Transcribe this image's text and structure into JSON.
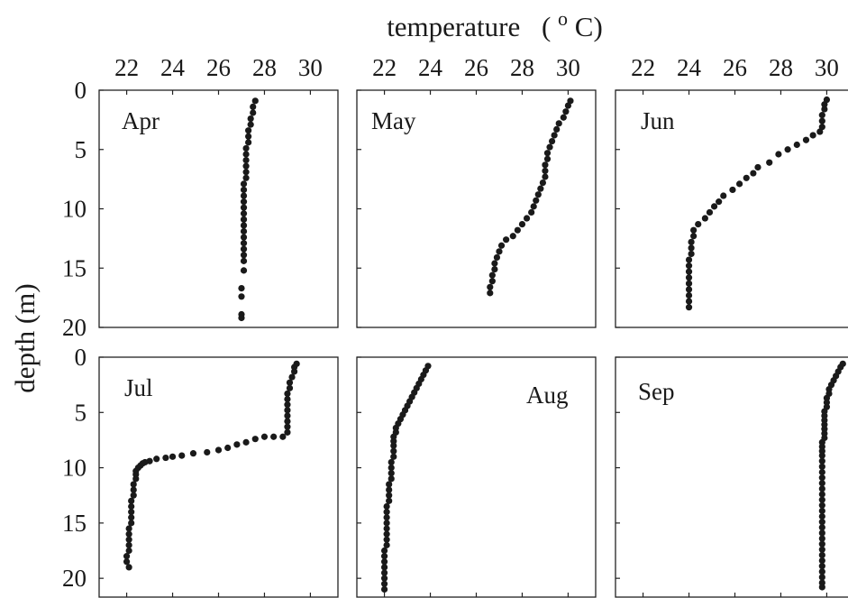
{
  "figure": {
    "xlabel": "temperature",
    "xlabel_unit_open": "(",
    "xlabel_unit_sup": "o",
    "xlabel_unit_close": "C)",
    "ylabel": "depth (m)"
  },
  "chart_data": {
    "type": "scatter",
    "xlabel": "temperature (oC)",
    "ylabel": "depth (m)",
    "xticks": [
      22,
      24,
      26,
      28,
      30
    ],
    "panels": [
      {
        "month": "Apr",
        "xlim": [
          20.8,
          31.2
        ],
        "ylim": [
          0,
          20
        ],
        "yticks": [
          0,
          5,
          10,
          15,
          20
        ],
        "points": [
          [
            27.6,
            0.9
          ],
          [
            27.5,
            1.4
          ],
          [
            27.5,
            1.9
          ],
          [
            27.4,
            2.4
          ],
          [
            27.4,
            2.9
          ],
          [
            27.3,
            3.4
          ],
          [
            27.3,
            3.9
          ],
          [
            27.3,
            4.4
          ],
          [
            27.2,
            4.9
          ],
          [
            27.2,
            5.4
          ],
          [
            27.2,
            5.9
          ],
          [
            27.2,
            6.4
          ],
          [
            27.2,
            6.9
          ],
          [
            27.2,
            7.4
          ],
          [
            27.1,
            7.9
          ],
          [
            27.1,
            8.4
          ],
          [
            27.1,
            8.9
          ],
          [
            27.1,
            9.4
          ],
          [
            27.1,
            9.9
          ],
          [
            27.1,
            10.4
          ],
          [
            27.1,
            10.9
          ],
          [
            27.1,
            11.4
          ],
          [
            27.1,
            11.9
          ],
          [
            27.1,
            12.4
          ],
          [
            27.1,
            12.9
          ],
          [
            27.1,
            13.4
          ],
          [
            27.1,
            13.9
          ],
          [
            27.1,
            14.4
          ],
          [
            27.1,
            15.2
          ],
          [
            27.0,
            16.7
          ],
          [
            27.0,
            17.4
          ],
          [
            27.0,
            18.9
          ],
          [
            27.0,
            19.2
          ]
        ]
      },
      {
        "month": "May",
        "xlim": [
          20.8,
          31.2
        ],
        "ylim": [
          0,
          20
        ],
        "yticks": [
          0,
          5,
          10,
          15,
          20
        ],
        "points": [
          [
            30.1,
            0.9
          ],
          [
            30.0,
            1.3
          ],
          [
            29.9,
            1.8
          ],
          [
            29.8,
            2.3
          ],
          [
            29.6,
            2.8
          ],
          [
            29.5,
            3.3
          ],
          [
            29.4,
            3.8
          ],
          [
            29.3,
            4.3
          ],
          [
            29.2,
            4.8
          ],
          [
            29.1,
            5.3
          ],
          [
            29.1,
            5.8
          ],
          [
            29.0,
            6.3
          ],
          [
            29.0,
            6.8
          ],
          [
            29.0,
            7.3
          ],
          [
            28.9,
            7.8
          ],
          [
            28.8,
            8.3
          ],
          [
            28.7,
            8.8
          ],
          [
            28.6,
            9.3
          ],
          [
            28.5,
            9.8
          ],
          [
            28.4,
            10.3
          ],
          [
            28.2,
            10.8
          ],
          [
            28.0,
            11.3
          ],
          [
            27.8,
            11.8
          ],
          [
            27.6,
            12.3
          ],
          [
            27.3,
            12.6
          ],
          [
            27.1,
            13.1
          ],
          [
            27.0,
            13.6
          ],
          [
            26.9,
            14.1
          ],
          [
            26.8,
            14.6
          ],
          [
            26.8,
            15.1
          ],
          [
            26.7,
            15.6
          ],
          [
            26.7,
            16.1
          ],
          [
            26.6,
            16.6
          ],
          [
            26.6,
            17.1
          ]
        ]
      },
      {
        "month": "Jun",
        "xlim": [
          20.8,
          31.2
        ],
        "ylim": [
          0,
          20
        ],
        "yticks": [
          0,
          5,
          10,
          15,
          20
        ],
        "points": [
          [
            30.0,
            0.8
          ],
          [
            29.9,
            1.2
          ],
          [
            29.9,
            1.6
          ],
          [
            29.8,
            2.1
          ],
          [
            29.8,
            2.6
          ],
          [
            29.8,
            3.1
          ],
          [
            29.7,
            3.5
          ],
          [
            29.4,
            3.8
          ],
          [
            29.1,
            4.2
          ],
          [
            28.7,
            4.6
          ],
          [
            28.3,
            5.0
          ],
          [
            27.9,
            5.4
          ],
          [
            27.5,
            6.1
          ],
          [
            27.0,
            6.5
          ],
          [
            26.8,
            7.0
          ],
          [
            26.5,
            7.4
          ],
          [
            26.2,
            7.9
          ],
          [
            25.9,
            8.4
          ],
          [
            25.5,
            8.9
          ],
          [
            25.3,
            9.4
          ],
          [
            25.1,
            9.8
          ],
          [
            24.9,
            10.3
          ],
          [
            24.7,
            10.8
          ],
          [
            24.4,
            11.3
          ],
          [
            24.2,
            11.8
          ],
          [
            24.2,
            12.3
          ],
          [
            24.1,
            12.8
          ],
          [
            24.1,
            13.3
          ],
          [
            24.1,
            13.8
          ],
          [
            24.0,
            14.3
          ],
          [
            24.0,
            14.8
          ],
          [
            24.0,
            15.3
          ],
          [
            24.0,
            15.8
          ],
          [
            24.0,
            16.3
          ],
          [
            24.0,
            16.8
          ],
          [
            24.0,
            17.3
          ],
          [
            24.0,
            17.8
          ],
          [
            24.0,
            18.3
          ]
        ]
      },
      {
        "month": "Jul",
        "xlim": [
          20.8,
          31.2
        ],
        "ylim": [
          0,
          21.7
        ],
        "yticks": [
          0,
          5,
          10,
          15,
          20
        ],
        "points": [
          [
            29.4,
            0.6
          ],
          [
            29.3,
            0.9
          ],
          [
            29.3,
            1.3
          ],
          [
            29.2,
            1.8
          ],
          [
            29.1,
            2.3
          ],
          [
            29.1,
            2.8
          ],
          [
            29.0,
            3.3
          ],
          [
            29.0,
            3.8
          ],
          [
            29.0,
            4.3
          ],
          [
            29.0,
            4.8
          ],
          [
            29.0,
            5.3
          ],
          [
            29.0,
            5.8
          ],
          [
            29.0,
            6.3
          ],
          [
            29.0,
            6.8
          ],
          [
            28.8,
            7.2
          ],
          [
            28.4,
            7.2
          ],
          [
            28.0,
            7.2
          ],
          [
            27.6,
            7.4
          ],
          [
            27.2,
            7.7
          ],
          [
            26.8,
            7.9
          ],
          [
            26.4,
            8.2
          ],
          [
            26.0,
            8.4
          ],
          [
            25.5,
            8.6
          ],
          [
            24.9,
            8.7
          ],
          [
            24.4,
            8.9
          ],
          [
            24.0,
            9.0
          ],
          [
            23.7,
            9.1
          ],
          [
            23.3,
            9.2
          ],
          [
            23.0,
            9.4
          ],
          [
            22.8,
            9.5
          ],
          [
            22.7,
            9.6
          ],
          [
            22.6,
            9.8
          ],
          [
            22.5,
            10.0
          ],
          [
            22.4,
            10.3
          ],
          [
            22.4,
            10.6
          ],
          [
            22.4,
            11.0
          ],
          [
            22.3,
            11.5
          ],
          [
            22.3,
            12.0
          ],
          [
            22.3,
            12.5
          ],
          [
            22.2,
            13.0
          ],
          [
            22.2,
            13.5
          ],
          [
            22.2,
            14.0
          ],
          [
            22.2,
            14.5
          ],
          [
            22.2,
            15.0
          ],
          [
            22.1,
            15.5
          ],
          [
            22.1,
            16.0
          ],
          [
            22.1,
            16.5
          ],
          [
            22.1,
            17.0
          ],
          [
            22.1,
            17.5
          ],
          [
            22.0,
            18.0
          ],
          [
            22.0,
            18.5
          ],
          [
            22.1,
            19.0
          ]
        ]
      },
      {
        "month": "Aug",
        "xlim": [
          20.8,
          31.2
        ],
        "ylim": [
          0,
          21.7
        ],
        "yticks": [
          0,
          5,
          10,
          15,
          20
        ],
        "points": [
          [
            23.9,
            0.8
          ],
          [
            23.8,
            1.2
          ],
          [
            23.7,
            1.6
          ],
          [
            23.6,
            2.0
          ],
          [
            23.5,
            2.4
          ],
          [
            23.4,
            2.8
          ],
          [
            23.3,
            3.2
          ],
          [
            23.2,
            3.6
          ],
          [
            23.1,
            4.0
          ],
          [
            23.0,
            4.4
          ],
          [
            22.9,
            4.8
          ],
          [
            22.8,
            5.2
          ],
          [
            22.7,
            5.6
          ],
          [
            22.6,
            6.0
          ],
          [
            22.5,
            6.4
          ],
          [
            22.5,
            6.8
          ],
          [
            22.4,
            7.2
          ],
          [
            22.4,
            7.6
          ],
          [
            22.4,
            8.0
          ],
          [
            22.4,
            8.5
          ],
          [
            22.4,
            9.0
          ],
          [
            22.3,
            9.5
          ],
          [
            22.3,
            10.0
          ],
          [
            22.3,
            10.5
          ],
          [
            22.3,
            11.0
          ],
          [
            22.2,
            11.5
          ],
          [
            22.2,
            12.0
          ],
          [
            22.2,
            12.5
          ],
          [
            22.2,
            13.0
          ],
          [
            22.1,
            13.5
          ],
          [
            22.1,
            14.0
          ],
          [
            22.1,
            14.5
          ],
          [
            22.1,
            15.0
          ],
          [
            22.1,
            15.5
          ],
          [
            22.1,
            16.0
          ],
          [
            22.1,
            16.5
          ],
          [
            22.1,
            17.0
          ],
          [
            22.0,
            17.5
          ],
          [
            22.0,
            18.0
          ],
          [
            22.0,
            18.5
          ],
          [
            22.0,
            19.0
          ],
          [
            22.0,
            19.5
          ],
          [
            22.0,
            20.0
          ],
          [
            22.0,
            20.5
          ],
          [
            22.0,
            21.0
          ]
        ]
      },
      {
        "month": "Sep",
        "xlim": [
          20.8,
          31.2
        ],
        "ylim": [
          0,
          21.7
        ],
        "yticks": [
          0,
          5,
          10,
          15,
          20
        ],
        "points": [
          [
            30.7,
            0.6
          ],
          [
            30.6,
            0.9
          ],
          [
            30.5,
            1.3
          ],
          [
            30.4,
            1.7
          ],
          [
            30.3,
            2.1
          ],
          [
            30.2,
            2.5
          ],
          [
            30.1,
            2.9
          ],
          [
            30.1,
            3.3
          ],
          [
            30.0,
            3.7
          ],
          [
            30.0,
            4.1
          ],
          [
            30.0,
            4.5
          ],
          [
            29.9,
            4.9
          ],
          [
            29.9,
            5.3
          ],
          [
            29.9,
            5.7
          ],
          [
            29.9,
            6.1
          ],
          [
            29.9,
            6.5
          ],
          [
            29.9,
            6.9
          ],
          [
            29.9,
            7.3
          ],
          [
            29.8,
            7.7
          ],
          [
            29.8,
            8.1
          ],
          [
            29.8,
            8.5
          ],
          [
            29.8,
            8.9
          ],
          [
            29.8,
            9.4
          ],
          [
            29.8,
            9.9
          ],
          [
            29.8,
            10.4
          ],
          [
            29.8,
            10.9
          ],
          [
            29.8,
            11.4
          ],
          [
            29.8,
            11.9
          ],
          [
            29.8,
            12.4
          ],
          [
            29.8,
            12.9
          ],
          [
            29.8,
            13.4
          ],
          [
            29.8,
            13.9
          ],
          [
            29.8,
            14.4
          ],
          [
            29.8,
            14.9
          ],
          [
            29.8,
            15.4
          ],
          [
            29.8,
            15.9
          ],
          [
            29.8,
            16.4
          ],
          [
            29.8,
            16.9
          ],
          [
            29.8,
            17.4
          ],
          [
            29.8,
            17.9
          ],
          [
            29.8,
            18.4
          ],
          [
            29.8,
            18.9
          ],
          [
            29.8,
            19.4
          ],
          [
            29.8,
            19.9
          ],
          [
            29.8,
            20.4
          ],
          [
            29.8,
            20.8
          ]
        ]
      }
    ]
  }
}
